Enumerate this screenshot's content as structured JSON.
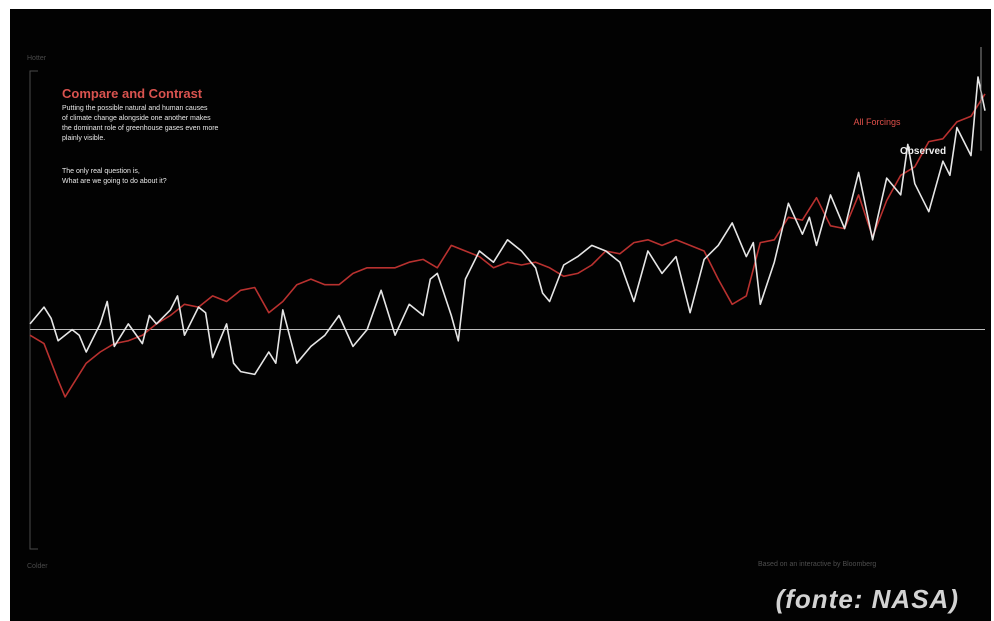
{
  "text": {
    "title": "Compare and Contrast",
    "body_1": "Putting the possible natural and human causes\nof climate change alongside one another makes\nthe dominant role of greenhouse gases even more\nplainly visible.",
    "body_2": "The only real question is,\nWhat are we going to do about it?",
    "axis_top": "Hotter",
    "axis_bottom": "Colder",
    "credit": "Based on an interactive by Bloomberg",
    "source": "(fonte: NASA)"
  },
  "colors": {
    "background": "#020202",
    "forcings_line": "#b8312f",
    "observed_line": "#e6e6e6",
    "zero_line": "#bdbdbd",
    "title": "#d9534f"
  },
  "chart_data": {
    "type": "line",
    "title": "Compare and Contrast",
    "x_range": [
      1880,
      2016
    ],
    "y_range_label": [
      "Colder",
      "Hotter"
    ],
    "ylim": [
      -0.8,
      1.0
    ],
    "grid": false,
    "legend": "inline labels at right end of lines",
    "series": [
      {
        "name": "All Forcings",
        "color": "#b8312f",
        "x": [
          1880,
          1882,
          1884,
          1885,
          1886,
          1888,
          1890,
          1892,
          1894,
          1896,
          1898,
          1900,
          1902,
          1904,
          1906,
          1908,
          1910,
          1912,
          1914,
          1916,
          1918,
          1920,
          1922,
          1924,
          1926,
          1928,
          1930,
          1932,
          1934,
          1936,
          1938,
          1940,
          1942,
          1944,
          1946,
          1948,
          1950,
          1952,
          1954,
          1956,
          1958,
          1960,
          1962,
          1964,
          1966,
          1968,
          1970,
          1972,
          1974,
          1976,
          1978,
          1980,
          1982,
          1984,
          1986,
          1988,
          1990,
          1992,
          1994,
          1996,
          1998,
          2000,
          2002,
          2004,
          2006,
          2008,
          2010,
          2012,
          2014,
          2016
        ],
        "values": [
          -0.02,
          -0.05,
          -0.18,
          -0.24,
          -0.2,
          -0.12,
          -0.08,
          -0.05,
          -0.04,
          -0.02,
          0.02,
          0.05,
          0.09,
          0.08,
          0.12,
          0.1,
          0.14,
          0.15,
          0.06,
          0.1,
          0.16,
          0.18,
          0.16,
          0.16,
          0.2,
          0.22,
          0.22,
          0.22,
          0.24,
          0.25,
          0.22,
          0.3,
          0.28,
          0.26,
          0.22,
          0.24,
          0.23,
          0.24,
          0.22,
          0.19,
          0.2,
          0.23,
          0.28,
          0.27,
          0.31,
          0.32,
          0.3,
          0.32,
          0.3,
          0.28,
          0.18,
          0.09,
          0.12,
          0.31,
          0.32,
          0.4,
          0.39,
          0.47,
          0.37,
          0.36,
          0.48,
          0.33,
          0.46,
          0.55,
          0.58,
          0.67,
          0.68,
          0.74,
          0.76,
          0.84
        ]
      },
      {
        "name": "Observed",
        "color": "#e6e6e6",
        "x": [
          1880,
          1882,
          1883,
          1884,
          1886,
          1887,
          1888,
          1890,
          1891,
          1892,
          1894,
          1896,
          1897,
          1898,
          1900,
          1901,
          1902,
          1904,
          1905,
          1906,
          1908,
          1909,
          1910,
          1912,
          1914,
          1915,
          1916,
          1918,
          1920,
          1922,
          1924,
          1926,
          1928,
          1930,
          1932,
          1934,
          1936,
          1937,
          1938,
          1940,
          1941,
          1942,
          1944,
          1945,
          1946,
          1948,
          1950,
          1952,
          1953,
          1954,
          1956,
          1958,
          1960,
          1962,
          1964,
          1966,
          1968,
          1970,
          1972,
          1974,
          1976,
          1978,
          1980,
          1982,
          1983,
          1984,
          1986,
          1988,
          1990,
          1991,
          1992,
          1994,
          1996,
          1998,
          2000,
          2002,
          2004,
          2005,
          2006,
          2008,
          2010,
          2011,
          2012,
          2014,
          2015,
          2016
        ],
        "values": [
          0.02,
          0.08,
          0.04,
          -0.04,
          0.0,
          -0.02,
          -0.08,
          0.02,
          0.1,
          -0.06,
          0.02,
          -0.05,
          0.05,
          0.02,
          0.07,
          0.12,
          -0.02,
          0.08,
          0.06,
          -0.1,
          0.02,
          -0.12,
          -0.15,
          -0.16,
          -0.08,
          -0.12,
          0.07,
          -0.12,
          -0.06,
          -0.02,
          0.05,
          -0.06,
          0.0,
          0.14,
          -0.02,
          0.09,
          0.05,
          0.18,
          0.2,
          0.05,
          -0.04,
          0.18,
          0.28,
          0.26,
          0.24,
          0.32,
          0.28,
          0.22,
          0.13,
          0.1,
          0.23,
          0.26,
          0.3,
          0.28,
          0.24,
          0.1,
          0.28,
          0.2,
          0.26,
          0.06,
          0.25,
          0.3,
          0.38,
          0.26,
          0.31,
          0.09,
          0.24,
          0.45,
          0.34,
          0.4,
          0.3,
          0.48,
          0.36,
          0.56,
          0.32,
          0.54,
          0.48,
          0.66,
          0.52,
          0.42,
          0.6,
          0.55,
          0.72,
          0.62,
          0.9,
          0.78
        ]
      }
    ]
  }
}
